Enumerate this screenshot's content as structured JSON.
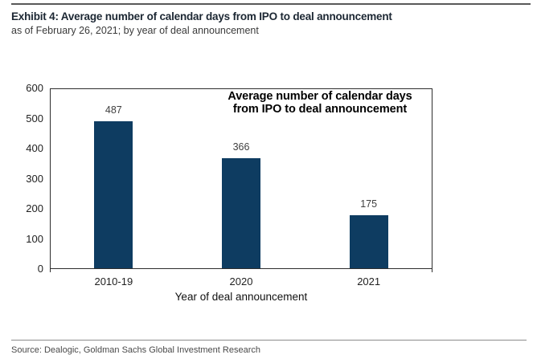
{
  "header": {
    "title": "Exhibit 4: Average number of calendar days from IPO to deal announcement",
    "subtitle": "as of February 26, 2021; by year of deal announcement"
  },
  "footer": {
    "source": "Source: Dealogic, Goldman Sachs Global Investment Research"
  },
  "chart_data": {
    "type": "bar",
    "title": "Average number of calendar days from IPO to deal announcement",
    "annotation_lines": [
      "Average number of calendar days",
      "from IPO to deal announcement"
    ],
    "categories": [
      "2010-19",
      "2020",
      "2021"
    ],
    "values": [
      487,
      366,
      175
    ],
    "xlabel": "Year of deal announcement",
    "ylabel": "",
    "ylim": [
      0,
      600
    ],
    "yticks": [
      0,
      100,
      200,
      300,
      400,
      500,
      600
    ],
    "grid": false,
    "legend": "none",
    "bar_color": "#0e3c61",
    "frame_color": "#2e2e2e",
    "value_label_color": "#3f3f3f"
  }
}
